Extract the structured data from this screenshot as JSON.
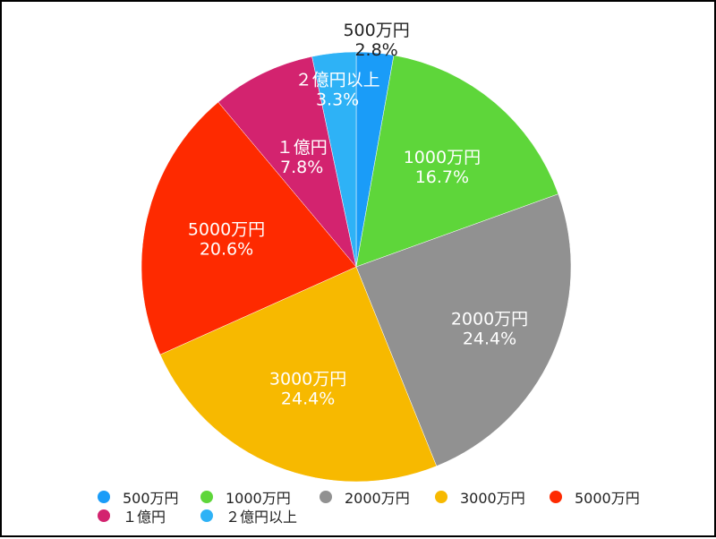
{
  "chart_data": {
    "type": "pie",
    "categories": [
      "500万円",
      "1000万円",
      "2000万円",
      "3000万円",
      "5000万円",
      "１億円",
      "２億円以上"
    ],
    "values": [
      2.8,
      16.7,
      24.4,
      24.4,
      20.6,
      7.8,
      3.3
    ],
    "value_labels": [
      "2.8%",
      "16.7%",
      "24.4%",
      "24.4%",
      "20.6%",
      "7.8%",
      "3.3%"
    ],
    "colors": [
      "#1a9cf8",
      "#5ed63a",
      "#919191",
      "#f7b900",
      "#fe2a00",
      "#d3236f",
      "#2eb2f6"
    ],
    "legend_placement": "bottom"
  }
}
